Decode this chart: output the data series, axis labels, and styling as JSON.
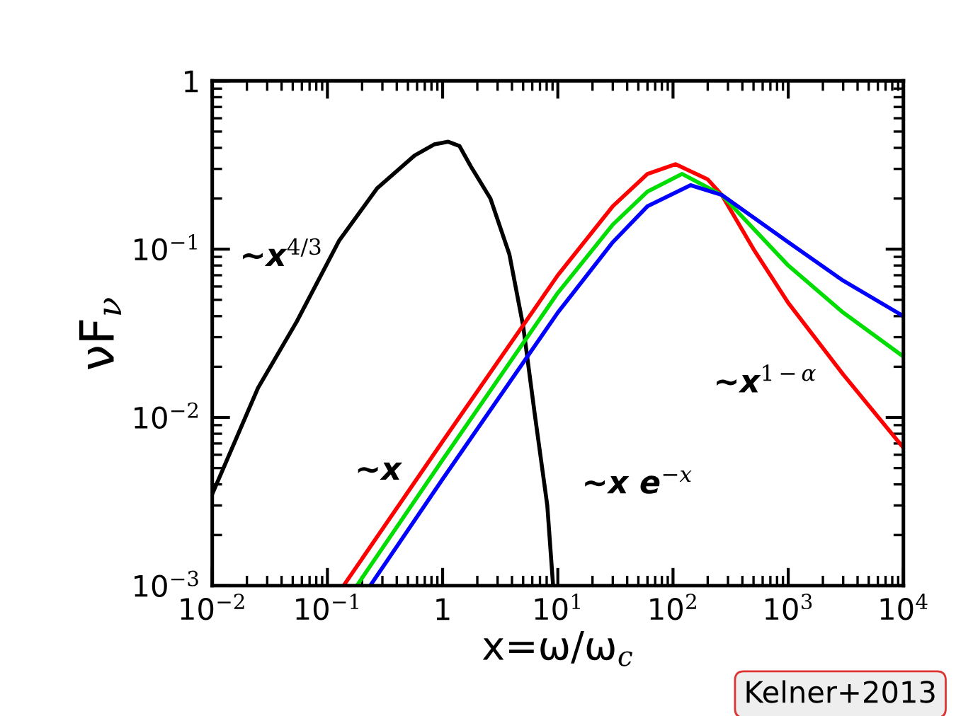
{
  "chart_data": {
    "type": "line",
    "xlabel": "x=ω/ω$_{c}$",
    "ylabel": "νF$_{ν}$",
    "log": "xy",
    "grid": false,
    "legend": false,
    "marker": "none",
    "line_style": "solid",
    "xlim": [
      0.01,
      10000
    ],
    "ylim": [
      0.001,
      1
    ],
    "xticks": [
      {
        "value": 0.01,
        "label": "10$^{−2}$"
      },
      {
        "value": 0.1,
        "label": "10$^{−1}$"
      },
      1,
      {
        "value": 10,
        "label": "10$^{1}$"
      },
      {
        "value": 100,
        "label": "10$^{2}$"
      },
      {
        "value": 1000,
        "label": "10$^{3}$"
      },
      {
        "value": 10000,
        "label": "10$^{4}$"
      }
    ],
    "yticks": [
      {
        "value": 0.001,
        "label": "10$^{−3}$"
      },
      {
        "value": 0.01,
        "label": "10$^{−2}$"
      },
      {
        "value": 0.1,
        "label": "10$^{−1}$"
      },
      1
    ],
    "series": [
      {
        "color": "#000000",
        "x": [
          0.01,
          0.025,
          0.054,
          0.126,
          0.27,
          0.57,
          0.85,
          1.12,
          1.4,
          1.76,
          2.6,
          3.8,
          5,
          6.3,
          8.1,
          9.1
        ],
        "values": [
          0.0035,
          0.015,
          0.037,
          0.112,
          0.23,
          0.36,
          0.42,
          0.435,
          0.41,
          0.31,
          0.2,
          0.093,
          0.035,
          0.0105,
          0.003,
          0.001
        ]
      },
      {
        "color": "#ff0000",
        "x": [
          0.138,
          1,
          10,
          30,
          60,
          105,
          200,
          265,
          500,
          1000,
          3000,
          10000
        ],
        "values": [
          0.001,
          0.0072,
          0.07,
          0.18,
          0.28,
          0.32,
          0.26,
          0.21,
          0.1,
          0.048,
          0.018,
          0.0066
        ]
      },
      {
        "color": "#00dd00",
        "x": [
          0.18,
          1,
          10,
          30,
          60,
          120,
          265,
          1000,
          3000,
          10000
        ],
        "values": [
          0.001,
          0.0056,
          0.055,
          0.14,
          0.22,
          0.28,
          0.21,
          0.08,
          0.042,
          0.023
        ]
      },
      {
        "color": "#0000ff",
        "x": [
          0.235,
          1,
          10,
          30,
          60,
          142,
          265,
          1000,
          3000,
          10000
        ],
        "values": [
          0.001,
          0.0043,
          0.042,
          0.11,
          0.18,
          0.24,
          0.21,
          0.11,
          0.065,
          0.04
        ]
      }
    ],
    "annotations": [
      "∼x$^{4/3}$",
      "∼x",
      "∼x e$^{−x}$",
      "∼x$^{1−α}$",
      "Kelner+2013"
    ]
  }
}
